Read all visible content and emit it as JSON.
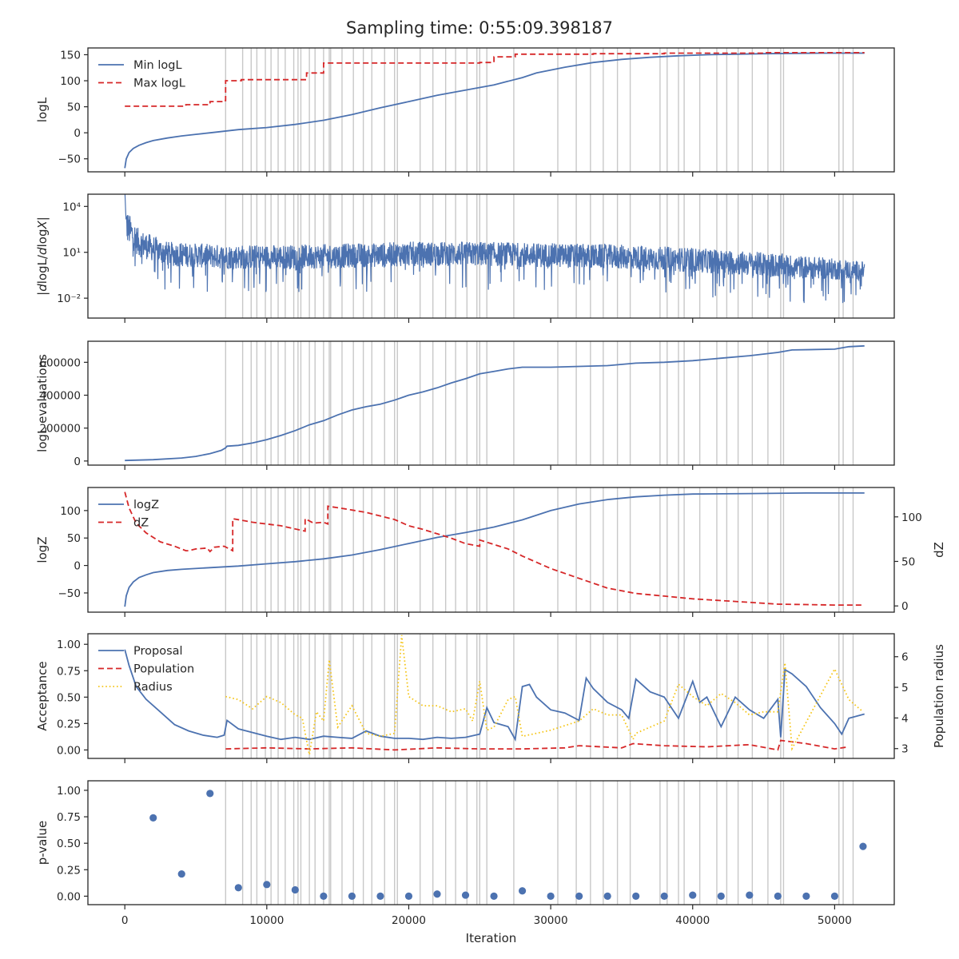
{
  "title": "Sampling time: 0:55:09.398187",
  "colors": {
    "blue": "#4c72b0",
    "red": "#d62728",
    "gold": "#f5c518",
    "grid": "#c8c8c8",
    "frame": "#262626"
  },
  "chart_data": [
    {
      "type": "line",
      "panel": "logL",
      "ylabel": "logL",
      "xlim": [
        -2600,
        54200
      ],
      "ylim": [
        -75,
        163
      ],
      "yticks": [
        -50,
        0,
        50,
        100,
        150
      ],
      "ytick_labels": [
        "−50",
        "0",
        "50",
        "100",
        "150"
      ],
      "legend": "upper-left",
      "series": [
        {
          "name": "Min logL",
          "style": "solid",
          "color": "blue",
          "x": [
            0,
            100,
            300,
            600,
            1000,
            1500,
            2000,
            3000,
            4000,
            5000,
            6000,
            7000,
            8000,
            10000,
            12000,
            14000,
            16000,
            18000,
            20000,
            22000,
            24000,
            26000,
            28000,
            29000,
            31000,
            33000,
            35000,
            37000,
            39000,
            41000,
            43000,
            45000,
            47000,
            49000,
            51000,
            52100
          ],
          "y": [
            -68,
            -50,
            -38,
            -30,
            -24,
            -19,
            -15,
            -10,
            -6,
            -3,
            0,
            3,
            6,
            10,
            16,
            24,
            35,
            48,
            60,
            72,
            82,
            92,
            106,
            115,
            126,
            135,
            141,
            145,
            148,
            150,
            151,
            152,
            152.5,
            153,
            153,
            153
          ]
        },
        {
          "name": "Max logL",
          "style": "dashed",
          "color": "red",
          "x": [
            0,
            4300,
            4300,
            6000,
            6000,
            7000,
            7000,
            7100,
            7100,
            8200,
            8200,
            12800,
            12800,
            14000,
            14000,
            25000,
            25000,
            26000,
            26000,
            27500,
            27500,
            33000,
            33000,
            38000,
            38000,
            45000,
            45000,
            52100
          ],
          "y": [
            51,
            51,
            54,
            54,
            60,
            60,
            62,
            62,
            100,
            100,
            102,
            102,
            115,
            115,
            134,
            134,
            135,
            135,
            146,
            146,
            151,
            151,
            152,
            152,
            153,
            153,
            154,
            154
          ]
        }
      ]
    },
    {
      "type": "line",
      "panel": "dlogL",
      "ylabel": "|dlogL/dlogX|",
      "yscale": "log",
      "xlim": [
        -2600,
        54200
      ],
      "ylim_log10": [
        -3.3,
        4.8
      ],
      "yticks": [
        "10^4",
        "10^1",
        "10^-2"
      ],
      "series": [
        {
          "name": "",
          "style": "noisy",
          "color": "blue",
          "x": [
            0,
            500,
            1000,
            3000,
            7000,
            12000,
            17000,
            20000,
            25000,
            30000,
            35000,
            40000,
            45000,
            50000,
            52100
          ],
          "y_log10_center": [
            2.9,
            2.2,
            1.6,
            0.9,
            0.7,
            0.7,
            0.8,
            0.9,
            0.9,
            0.8,
            0.7,
            0.5,
            0.2,
            -0.1,
            -0.2
          ],
          "band_log10": [
            1.1,
            1.0,
            0.9,
            0.8,
            0.8,
            0.8,
            0.8,
            0.8,
            0.8,
            0.8,
            0.8,
            0.8,
            0.8,
            0.7,
            0.6
          ]
        }
      ]
    },
    {
      "type": "line",
      "panel": "evaluations",
      "ylabel": "logL evaluations",
      "xlim": [
        -2600,
        54200
      ],
      "ylim": [
        -25000,
        728000
      ],
      "yticks": [
        0,
        200000,
        400000,
        600000
      ],
      "ytick_labels": [
        "0",
        "200000",
        "400000",
        "600000"
      ],
      "series": [
        {
          "name": "",
          "style": "solid",
          "color": "blue",
          "x": [
            0,
            2000,
            4000,
            5000,
            6000,
            6800,
            7100,
            7200,
            8000,
            9000,
            10000,
            11000,
            12000,
            13000,
            14000,
            15000,
            16000,
            17000,
            18000,
            19000,
            20000,
            21000,
            22000,
            23000,
            24000,
            25000,
            26000,
            27000,
            28000,
            30000,
            32000,
            34000,
            36000,
            38000,
            40000,
            42000,
            44000,
            46000,
            47000,
            50000,
            51000,
            52100
          ],
          "y": [
            3000,
            8000,
            18000,
            28000,
            45000,
            65000,
            80000,
            90000,
            95000,
            110000,
            130000,
            155000,
            185000,
            220000,
            245000,
            280000,
            310000,
            330000,
            345000,
            370000,
            400000,
            420000,
            445000,
            475000,
            500000,
            530000,
            545000,
            560000,
            570000,
            570000,
            575000,
            580000,
            595000,
            600000,
            610000,
            625000,
            640000,
            660000,
            675000,
            680000,
            695000,
            700000
          ]
        }
      ]
    },
    {
      "type": "line",
      "panel": "logZ",
      "ylabel": "logZ",
      "ylabel_right": "dZ",
      "xlim": [
        -2600,
        54200
      ],
      "ylim": [
        -85,
        142
      ],
      "ylim_right": [
        -7,
        133
      ],
      "yticks": [
        -50,
        0,
        50,
        100
      ],
      "ytick_labels": [
        "−50",
        "0",
        "50",
        "100"
      ],
      "yticks_right": [
        0,
        50,
        100
      ],
      "legend": "upper-left",
      "series": [
        {
          "name": "logZ",
          "style": "solid",
          "color": "blue",
          "axis": "left",
          "x": [
            0,
            100,
            300,
            600,
            1000,
            1500,
            2000,
            3000,
            4000,
            6000,
            8000,
            10000,
            12000,
            14000,
            16000,
            18000,
            20000,
            22000,
            24000,
            26000,
            28000,
            30000,
            32000,
            34000,
            36000,
            38000,
            40000,
            44000,
            48000,
            52100
          ],
          "y": [
            -75,
            -55,
            -40,
            -30,
            -22,
            -17,
            -13,
            -9,
            -7,
            -4,
            -1,
            3,
            7,
            12,
            19,
            29,
            40,
            51,
            60,
            70,
            83,
            100,
            112,
            120,
            125,
            128,
            130,
            131,
            132,
            132
          ]
        },
        {
          "name": "dZ",
          "style": "dashed",
          "color": "red",
          "axis": "right",
          "x": [
            0,
            300,
            800,
            1500,
            2500,
            3500,
            4300,
            4500,
            5000,
            5800,
            6000,
            6300,
            7000,
            7600,
            7600,
            9000,
            11000,
            12700,
            12700,
            13300,
            14000,
            14300,
            14300,
            15500,
            17000,
            19000,
            20000,
            21000,
            22000,
            23000,
            24000,
            25000,
            25000,
            27000,
            28000,
            30000,
            32000,
            34000,
            36000,
            38000,
            40000,
            42000,
            44000,
            46000,
            48000,
            50000,
            52100
          ],
          "y": [
            128,
            110,
            93,
            82,
            72,
            67,
            62,
            62,
            64,
            65,
            61,
            66,
            67,
            62,
            98,
            94,
            90,
            84,
            98,
            93,
            94,
            92,
            112,
            109,
            105,
            97,
            90,
            86,
            81,
            76,
            70,
            67,
            74,
            64,
            56,
            42,
            31,
            20,
            14,
            11,
            8,
            6,
            4,
            2,
            1.5,
            1,
            1
          ]
        }
      ]
    },
    {
      "type": "line",
      "panel": "acceptance",
      "ylabel": "Acceptance",
      "ylabel_right": "Population radius",
      "xlim": [
        -2600,
        54200
      ],
      "ylim": [
        -0.08,
        1.1
      ],
      "ylim_right": [
        2.68,
        6.75
      ],
      "yticks": [
        0,
        0.25,
        0.5,
        0.75,
        1.0
      ],
      "ytick_labels": [
        "0.00",
        "0.25",
        "0.50",
        "0.75",
        "1.00"
      ],
      "yticks_right": [
        3,
        4,
        5,
        6
      ],
      "legend": "upper-left",
      "series": [
        {
          "name": "Proposal",
          "style": "solid",
          "color": "blue",
          "axis": "left",
          "x": [
            0,
            300,
            800,
            1500,
            2500,
            3500,
            4500,
            5500,
            6500,
            7000,
            7200,
            8000,
            10000,
            11000,
            12000,
            13000,
            14000,
            15000,
            16000,
            17000,
            18000,
            19000,
            20000,
            21000,
            22000,
            23000,
            24000,
            25000,
            25500,
            26000,
            27000,
            27500,
            28000,
            28500,
            29000,
            30000,
            31000,
            32000,
            32500,
            33000,
            34000,
            35000,
            35500,
            36000,
            37000,
            38000,
            39000,
            40000,
            40500,
            41000,
            42000,
            43000,
            44000,
            45000,
            46000,
            46200,
            46500,
            47000,
            48000,
            49000,
            50000,
            50500,
            51000,
            52100
          ],
          "y": [
            0.95,
            0.8,
            0.6,
            0.48,
            0.36,
            0.24,
            0.18,
            0.14,
            0.12,
            0.14,
            0.28,
            0.2,
            0.13,
            0.1,
            0.12,
            0.1,
            0.13,
            0.12,
            0.11,
            0.18,
            0.13,
            0.11,
            0.11,
            0.1,
            0.12,
            0.11,
            0.12,
            0.15,
            0.4,
            0.26,
            0.22,
            0.1,
            0.6,
            0.62,
            0.5,
            0.38,
            0.35,
            0.28,
            0.68,
            0.58,
            0.45,
            0.38,
            0.3,
            0.67,
            0.55,
            0.5,
            0.3,
            0.65,
            0.45,
            0.5,
            0.22,
            0.5,
            0.38,
            0.3,
            0.48,
            0.12,
            0.76,
            0.72,
            0.6,
            0.4,
            0.25,
            0.15,
            0.3,
            0.34
          ]
        },
        {
          "name": "Population",
          "style": "dashed",
          "color": "red",
          "axis": "left",
          "x": [
            7100,
            10000,
            13000,
            16000,
            19000,
            22000,
            25000,
            28000,
            31000,
            32000,
            35000,
            35800,
            38000,
            41000,
            44000,
            46000,
            46200,
            48000,
            50000,
            51000
          ],
          "y": [
            0.01,
            0.02,
            0.01,
            0.02,
            0.0,
            0.02,
            0.01,
            0.01,
            0.02,
            0.04,
            0.02,
            0.06,
            0.04,
            0.03,
            0.05,
            0.0,
            0.09,
            0.06,
            0.01,
            0.03
          ]
        },
        {
          "name": "Radius",
          "style": "dotted",
          "color": "gold",
          "axis": "right",
          "x": [
            7100,
            8000,
            9000,
            9500,
            10000,
            11000,
            12000,
            12500,
            13000,
            13500,
            14000,
            14400,
            15000,
            16000,
            17000,
            18000,
            19000,
            19500,
            20000,
            21000,
            22000,
            23000,
            24000,
            24500,
            25000,
            25500,
            26000,
            27000,
            27500,
            28000,
            30000,
            32000,
            33000,
            34000,
            35000,
            35800,
            36000,
            38000,
            39000,
            40000,
            41000,
            42000,
            43000,
            44000,
            45000,
            46000,
            46500,
            47000,
            50000,
            51000,
            52000
          ],
          "y": [
            4.7,
            4.6,
            4.3,
            4.5,
            4.7,
            4.5,
            4.1,
            4.0,
            2.8,
            4.2,
            3.9,
            5.9,
            3.7,
            4.4,
            3.5,
            3.4,
            3.5,
            6.7,
            4.7,
            4.4,
            4.4,
            4.2,
            4.3,
            3.9,
            5.2,
            3.6,
            3.7,
            4.6,
            4.7,
            3.4,
            3.6,
            3.9,
            4.3,
            4.1,
            4.1,
            3.3,
            3.5,
            3.9,
            5.1,
            4.7,
            4.4,
            4.8,
            4.5,
            4.1,
            4.2,
            4.2,
            5.8,
            3.0,
            5.6,
            4.6,
            4.2
          ]
        }
      ]
    },
    {
      "type": "scatter",
      "panel": "pvalue",
      "ylabel": "p-value",
      "xlabel": "Iteration",
      "xlim": [
        -2600,
        54200
      ],
      "ylim": [
        -0.08,
        1.09
      ],
      "yticks": [
        0,
        0.25,
        0.5,
        0.75,
        1.0
      ],
      "ytick_labels": [
        "0.00",
        "0.25",
        "0.50",
        "0.75",
        "1.00"
      ],
      "xticks": [
        0,
        10000,
        20000,
        30000,
        40000,
        50000
      ],
      "xtick_labels": [
        "0",
        "10000",
        "20000",
        "30000",
        "40000",
        "50000"
      ],
      "series": [
        {
          "name": "",
          "style": "points",
          "color": "blue",
          "x": [
            2000,
            4000,
            6000,
            8000,
            10000,
            12000,
            14000,
            16000,
            18000,
            20000,
            22000,
            24000,
            26000,
            28000,
            30000,
            32000,
            34000,
            36000,
            38000,
            40000,
            42000,
            44000,
            46000,
            48000,
            50000,
            52000
          ],
          "y": [
            0.74,
            0.21,
            0.97,
            0.08,
            0.11,
            0.06,
            0.0,
            0.0,
            0.0,
            0.0,
            0.02,
            0.01,
            0.0,
            0.05,
            0.0,
            0.0,
            0.0,
            0.0,
            0.0,
            0.01,
            0.0,
            0.01,
            0.0,
            0.0,
            0.0,
            0.47
          ]
        }
      ]
    }
  ],
  "vertical_lines_x": [
    7100,
    8300,
    8900,
    9300,
    9900,
    10300,
    10800,
    11300,
    11900,
    12200,
    12400,
    13000,
    13400,
    14000,
    14400,
    14500,
    15300,
    16100,
    16800,
    17400,
    18300,
    19000,
    19200,
    20800,
    21700,
    22600,
    23300,
    24100,
    24800,
    25000,
    25500,
    27400,
    30500,
    31800,
    32800,
    33700,
    34700,
    35600,
    37700,
    38200,
    39000,
    39400,
    40500,
    41700,
    42400,
    43200,
    44200,
    45300,
    46200,
    46400,
    50300,
    50600,
    51300
  ]
}
